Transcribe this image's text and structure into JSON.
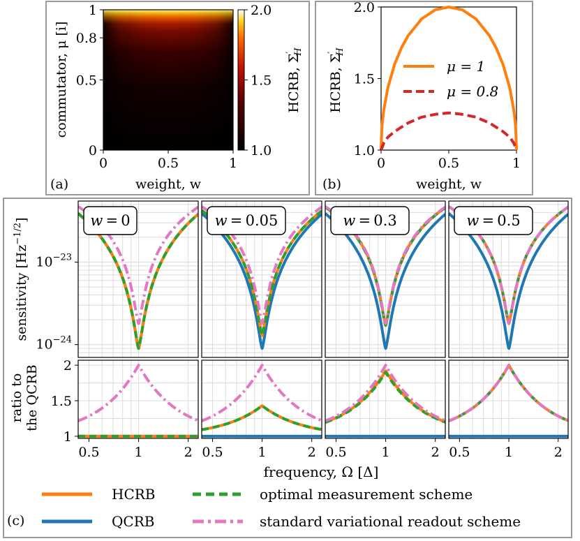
{
  "chart_data": [
    {
      "id": "a",
      "type": "heatmap",
      "panel_label": "(a)",
      "xlabel": "weight, w",
      "ylabel": "commutator, μ [i]",
      "xlim": [
        0,
        1
      ],
      "ylim": [
        0,
        1
      ],
      "xticks": [
        {
          "v": 0,
          "label": "0"
        },
        {
          "v": 0.5,
          "label": "0.5"
        },
        {
          "v": 1,
          "label": "1"
        }
      ],
      "yticks": [
        {
          "v": 0,
          "label": "0"
        },
        {
          "v": 0.5,
          "label": "0.5"
        },
        {
          "v": 0.8,
          "label": "0.8"
        },
        {
          "v": 1,
          "label": "1"
        }
      ],
      "colorbar": {
        "label": "HCRB, Σ′H",
        "label_main": "HCRB, Σ",
        "label_sub": "H",
        "label_prime": "′",
        "range": [
          1.0,
          2.0
        ],
        "ticks": [
          {
            "v": 1.0,
            "label": "1.0"
          },
          {
            "v": 1.5,
            "label": "1.5"
          },
          {
            "v": 2.0,
            "label": "2.0"
          }
        ],
        "colormap": "hot"
      }
    },
    {
      "id": "b",
      "type": "line",
      "panel_label": "(b)",
      "xlabel": "weight, w",
      "ylabel": "HCRB, Σ′H",
      "ylabel_main": "HCRB, Σ",
      "ylabel_sub": "H",
      "ylabel_prime": "′",
      "xlim": [
        0,
        1
      ],
      "ylim": [
        1.0,
        2.0
      ],
      "xticks": [
        {
          "v": 0,
          "label": "0"
        },
        {
          "v": 0.5,
          "label": "0.5"
        },
        {
          "v": 1,
          "label": "1"
        }
      ],
      "yticks": [
        {
          "v": 1.0,
          "label": "1.0"
        },
        {
          "v": 1.5,
          "label": "1.5"
        },
        {
          "v": 2.0,
          "label": "2.0"
        }
      ],
      "legend_position": "center",
      "series": [
        {
          "name": "μ = 1",
          "color": "#ff7f0e",
          "style": "solid",
          "x": [
            0,
            0.005,
            0.01,
            0.02,
            0.05,
            0.1,
            0.15,
            0.2,
            0.3,
            0.4,
            0.5,
            0.6,
            0.7,
            0.8,
            0.85,
            0.9,
            0.95,
            0.98,
            0.99,
            0.995,
            1
          ],
          "y": [
            1.0,
            1.141,
            1.199,
            1.28,
            1.436,
            1.6,
            1.714,
            1.8,
            1.917,
            1.98,
            2.0,
            1.98,
            1.917,
            1.8,
            1.714,
            1.6,
            1.436,
            1.28,
            1.199,
            1.141,
            1.0
          ]
        },
        {
          "name": "μ = 0.8",
          "color": "#d62728",
          "style": "dashed",
          "x": [
            0,
            0.02,
            0.05,
            0.1,
            0.15,
            0.2,
            0.3,
            0.4,
            0.5,
            0.6,
            0.7,
            0.8,
            0.85,
            0.9,
            0.95,
            0.98,
            1
          ],
          "y": [
            1.0,
            1.05,
            1.09,
            1.13,
            1.16,
            1.19,
            1.23,
            1.25,
            1.26,
            1.25,
            1.23,
            1.19,
            1.16,
            1.13,
            1.09,
            1.05,
            1.0
          ]
        }
      ]
    },
    {
      "id": "c",
      "type": "line",
      "panel_label": "(c)",
      "xlabel": "frequency, Ω [Δ]",
      "ylabel_top": "sensitivity [Hz⁻¹/²]",
      "ylabel_top_main": "sensitivity [Hz",
      "ylabel_top_sup": "−1/2",
      "ylabel_top_close": "]",
      "ylabel_bottom_line1": "ratio to",
      "ylabel_bottom_line2": "the QCRB",
      "xscale": "log",
      "xlim": [
        0.43,
        2.3
      ],
      "xticks": [
        {
          "v": 0.5,
          "label": "0.5"
        },
        {
          "v": 1,
          "label": "1"
        },
        {
          "v": 2,
          "label": "2"
        }
      ],
      "top_yscale": "log",
      "top_ylim": [
        7e-25,
        5.5e-23
      ],
      "top_yticks": [
        {
          "v": 1e-23,
          "base": "10",
          "exp": "−23"
        },
        {
          "v": 1e-24,
          "base": "10",
          "exp": "−24"
        }
      ],
      "bottom_ylim": [
        0.97,
        2.07
      ],
      "bottom_yticks": [
        {
          "v": 1.0,
          "label": "1"
        },
        {
          "v": 1.5,
          "label": "1.5"
        },
        {
          "v": 2.0,
          "label": "2"
        }
      ],
      "legend": [
        {
          "name": "HCRB",
          "color": "#ff7f0e",
          "style": "solid"
        },
        {
          "name": "QCRB",
          "color": "#1f77b4",
          "style": "solid"
        },
        {
          "name": "optimal measurement scheme",
          "color": "#2ca02c",
          "style": "dashed"
        },
        {
          "name": "standard variational readout scheme",
          "color": "#e377c2",
          "style": "dashdot"
        }
      ],
      "subpanels": [
        {
          "title": "w = 0",
          "w_label": "w",
          "w_value": "0",
          "sens_qcrb_peak_ratio": 1.0,
          "ratio": {
            "QCRB": 1,
            "HCRB_peak": 1.0,
            "optimal_peak": 1.0,
            "standard_peak": 2.0
          }
        },
        {
          "title": "w = 0.05",
          "w_label": "w",
          "w_value": "0.05",
          "ratio": {
            "QCRB": 1,
            "HCRB_peak": 1.43,
            "optimal_peak": 1.43,
            "standard_peak": 2.0
          }
        },
        {
          "title": "w = 0.3",
          "w_label": "w",
          "w_value": "0.3",
          "ratio": {
            "QCRB": 1,
            "HCRB_peak": 1.92,
            "optimal_peak": 1.9,
            "standard_peak": 2.0
          }
        },
        {
          "title": "w = 0.5",
          "w_label": "w",
          "w_value": "0.5",
          "ratio": {
            "QCRB": 1,
            "HCRB_peak": 2.0,
            "optimal_peak": 2.0,
            "standard_peak": 2.0
          }
        }
      ]
    }
  ]
}
